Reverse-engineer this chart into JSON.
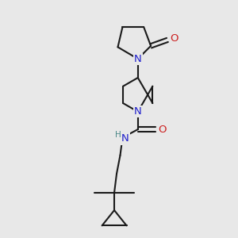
{
  "bg_color": "#e8e8e8",
  "bond_color": "#1a1a1a",
  "N_color": "#2020cc",
  "O_color": "#cc2020",
  "NH_color": "#4a8888",
  "line_width": 1.5,
  "figsize": [
    3.0,
    3.0
  ],
  "dpi": 100,
  "xlim": [
    0,
    10
  ],
  "ylim": [
    0,
    10
  ]
}
